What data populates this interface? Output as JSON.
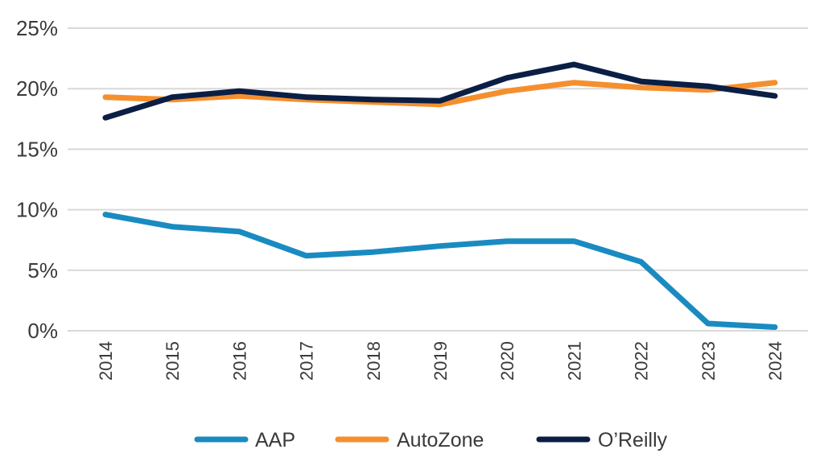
{
  "chart_data": {
    "type": "line",
    "title": "",
    "xlabel": "",
    "ylabel": "",
    "categories": [
      "2014",
      "2015",
      "2016",
      "2017",
      "2018",
      "2019",
      "2020",
      "2021",
      "2022",
      "2023",
      "2024"
    ],
    "ylim": [
      0,
      25
    ],
    "yticks": [
      0,
      5,
      10,
      15,
      20,
      25
    ],
    "ytick_labels": [
      "0%",
      "5%",
      "10%",
      "15%",
      "20%",
      "25%"
    ],
    "grid": true,
    "legend_position": "bottom",
    "series": [
      {
        "name": "AAP",
        "color": "#1a8bc1",
        "values": [
          9.6,
          8.6,
          8.2,
          6.2,
          6.5,
          7.0,
          7.4,
          7.4,
          5.7,
          0.6,
          0.3
        ]
      },
      {
        "name": "AutoZone",
        "color": "#f58f2e",
        "values": [
          19.3,
          19.1,
          19.4,
          19.1,
          18.9,
          18.7,
          19.8,
          20.5,
          20.1,
          19.9,
          20.5
        ]
      },
      {
        "name": "O’Reilly",
        "color": "#0b1f45",
        "values": [
          17.6,
          19.3,
          19.8,
          19.3,
          19.1,
          19.0,
          20.9,
          22.0,
          20.6,
          20.2,
          19.4
        ]
      }
    ]
  }
}
